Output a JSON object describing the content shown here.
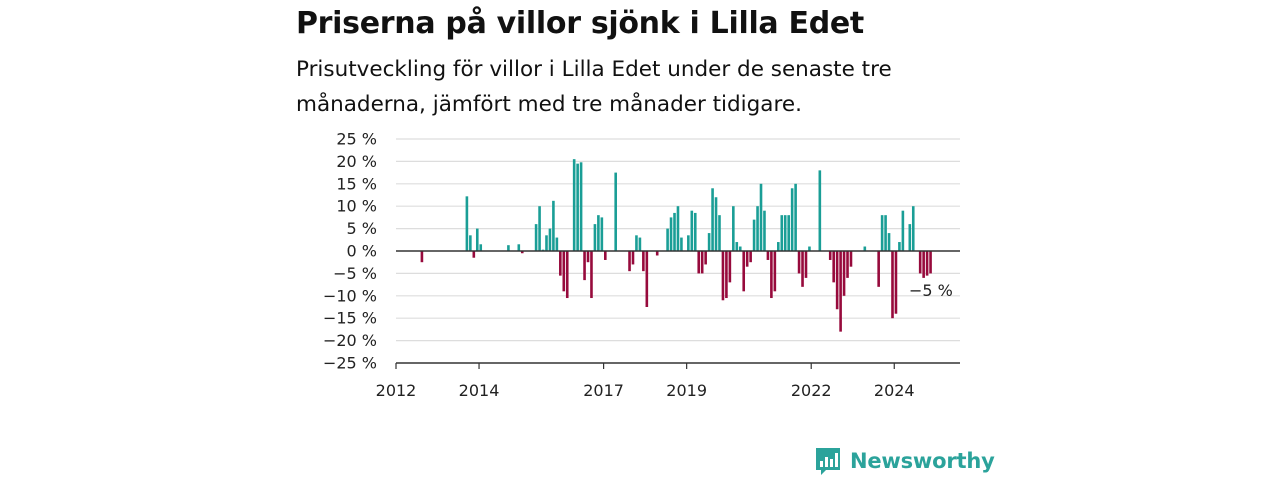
{
  "header": {
    "title": "Priserna på villor sjönk i Lilla Edet",
    "subtitle": "Prisutveckling för villor i Lilla Edet under de senaste tre månaderna, jämfört med tre månader tidigare."
  },
  "brand": {
    "name": "Newsworthy",
    "color": "#2ba39b"
  },
  "colors": {
    "positive": "#1a9e96",
    "negative": "#970a3c",
    "grid": "#dddddd",
    "axis": "#333333"
  },
  "chart_data": {
    "type": "bar",
    "unit": "%",
    "ylim": [
      -25,
      25
    ],
    "yticks": [
      {
        "value": 25,
        "label": "25 %"
      },
      {
        "value": 20,
        "label": "20 %"
      },
      {
        "value": 15,
        "label": "15 %"
      },
      {
        "value": 10,
        "label": "10 %"
      },
      {
        "value": 5,
        "label": "5 %"
      },
      {
        "value": 0,
        "label": "0 %"
      },
      {
        "value": -5,
        "label": "−5 %"
      },
      {
        "value": -10,
        "label": "−10 %"
      },
      {
        "value": -15,
        "label": "−15 %"
      },
      {
        "value": -20,
        "label": "−20 %"
      },
      {
        "value": -25,
        "label": "−25 %"
      }
    ],
    "xlim": [
      "2012-01",
      "2025-08"
    ],
    "xticks": [
      {
        "date": "2012-01",
        "label": "2012"
      },
      {
        "date": "2014-01",
        "label": "2014"
      },
      {
        "date": "2017-01",
        "label": "2017"
      },
      {
        "date": "2019-01",
        "label": "2019"
      },
      {
        "date": "2022-01",
        "label": "2022"
      },
      {
        "date": "2024-01",
        "label": "2024"
      }
    ],
    "grid": true,
    "end_label": "−5 %",
    "points": [
      {
        "date": "2012-08",
        "value": -2.5
      },
      {
        "date": "2013-09",
        "value": 12.2
      },
      {
        "date": "2013-10",
        "value": 3.5
      },
      {
        "date": "2013-11",
        "value": -1.5
      },
      {
        "date": "2013-12",
        "value": 5.0
      },
      {
        "date": "2014-01",
        "value": 1.5
      },
      {
        "date": "2014-09",
        "value": 1.3
      },
      {
        "date": "2014-12",
        "value": 1.5
      },
      {
        "date": "2015-01",
        "value": -0.5
      },
      {
        "date": "2015-05",
        "value": 6.0
      },
      {
        "date": "2015-06",
        "value": 10.0
      },
      {
        "date": "2015-07",
        "value": 0.3
      },
      {
        "date": "2015-08",
        "value": 3.5
      },
      {
        "date": "2015-09",
        "value": 5.0
      },
      {
        "date": "2015-10",
        "value": 11.2
      },
      {
        "date": "2015-11",
        "value": 3.0
      },
      {
        "date": "2015-12",
        "value": -5.5
      },
      {
        "date": "2016-01",
        "value": -9.0
      },
      {
        "date": "2016-02",
        "value": -10.5
      },
      {
        "date": "2016-04",
        "value": 20.5
      },
      {
        "date": "2016-05",
        "value": 19.5
      },
      {
        "date": "2016-06",
        "value": 19.8
      },
      {
        "date": "2016-07",
        "value": -6.5
      },
      {
        "date": "2016-08",
        "value": -2.5
      },
      {
        "date": "2016-09",
        "value": -10.5
      },
      {
        "date": "2016-10",
        "value": 6.0
      },
      {
        "date": "2016-11",
        "value": 8.0
      },
      {
        "date": "2016-12",
        "value": 7.5
      },
      {
        "date": "2017-01",
        "value": -2.0
      },
      {
        "date": "2017-04",
        "value": 17.5
      },
      {
        "date": "2017-08",
        "value": -4.5
      },
      {
        "date": "2017-09",
        "value": -3.0
      },
      {
        "date": "2017-10",
        "value": 3.5
      },
      {
        "date": "2017-11",
        "value": 3.0
      },
      {
        "date": "2017-12",
        "value": -4.5
      },
      {
        "date": "2018-01",
        "value": -12.5
      },
      {
        "date": "2018-04",
        "value": -1.0
      },
      {
        "date": "2018-07",
        "value": 5.0
      },
      {
        "date": "2018-08",
        "value": 7.5
      },
      {
        "date": "2018-09",
        "value": 8.5
      },
      {
        "date": "2018-10",
        "value": 10.0
      },
      {
        "date": "2018-11",
        "value": 3.0
      },
      {
        "date": "2019-01",
        "value": 3.5
      },
      {
        "date": "2019-02",
        "value": 9.0
      },
      {
        "date": "2019-03",
        "value": 8.5
      },
      {
        "date": "2019-04",
        "value": -5.0
      },
      {
        "date": "2019-05",
        "value": -5.0
      },
      {
        "date": "2019-06",
        "value": -3.0
      },
      {
        "date": "2019-07",
        "value": 4.0
      },
      {
        "date": "2019-08",
        "value": 14.0
      },
      {
        "date": "2019-09",
        "value": 12.0
      },
      {
        "date": "2019-10",
        "value": 8.0
      },
      {
        "date": "2019-11",
        "value": -11.0
      },
      {
        "date": "2019-12",
        "value": -10.5
      },
      {
        "date": "2020-01",
        "value": -7.0
      },
      {
        "date": "2020-02",
        "value": 10.0
      },
      {
        "date": "2020-03",
        "value": 2.0
      },
      {
        "date": "2020-04",
        "value": 1.0
      },
      {
        "date": "2020-05",
        "value": -9.0
      },
      {
        "date": "2020-06",
        "value": -3.5
      },
      {
        "date": "2020-07",
        "value": -2.5
      },
      {
        "date": "2020-08",
        "value": 7.0
      },
      {
        "date": "2020-09",
        "value": 10.0
      },
      {
        "date": "2020-10",
        "value": 15.0
      },
      {
        "date": "2020-11",
        "value": 9.0
      },
      {
        "date": "2020-12",
        "value": -2.0
      },
      {
        "date": "2021-01",
        "value": -10.5
      },
      {
        "date": "2021-02",
        "value": -9.0
      },
      {
        "date": "2021-03",
        "value": 2.0
      },
      {
        "date": "2021-04",
        "value": 8.0
      },
      {
        "date": "2021-05",
        "value": 8.0
      },
      {
        "date": "2021-06",
        "value": 8.0
      },
      {
        "date": "2021-07",
        "value": 14.0
      },
      {
        "date": "2021-08",
        "value": 15.0
      },
      {
        "date": "2021-09",
        "value": -5.0
      },
      {
        "date": "2021-10",
        "value": -8.0
      },
      {
        "date": "2021-11",
        "value": -6.0
      },
      {
        "date": "2021-12",
        "value": 1.0
      },
      {
        "date": "2022-03",
        "value": 18.0
      },
      {
        "date": "2022-06",
        "value": -2.0
      },
      {
        "date": "2022-07",
        "value": -7.0
      },
      {
        "date": "2022-08",
        "value": -13.0
      },
      {
        "date": "2022-09",
        "value": -18.0
      },
      {
        "date": "2022-10",
        "value": -10.0
      },
      {
        "date": "2022-11",
        "value": -6.0
      },
      {
        "date": "2022-12",
        "value": -3.5
      },
      {
        "date": "2023-04",
        "value": 1.0
      },
      {
        "date": "2023-08",
        "value": -8.0
      },
      {
        "date": "2023-09",
        "value": 8.0
      },
      {
        "date": "2023-10",
        "value": 8.0
      },
      {
        "date": "2023-11",
        "value": 4.0
      },
      {
        "date": "2023-12",
        "value": -15.0
      },
      {
        "date": "2024-01",
        "value": -14.0
      },
      {
        "date": "2024-02",
        "value": 2.0
      },
      {
        "date": "2024-03",
        "value": 9.0
      },
      {
        "date": "2024-05",
        "value": 6.0
      },
      {
        "date": "2024-06",
        "value": 10.0
      },
      {
        "date": "2024-08",
        "value": -5.0
      },
      {
        "date": "2024-09",
        "value": -6.0
      },
      {
        "date": "2024-10",
        "value": -5.5
      },
      {
        "date": "2024-11",
        "value": -5.0
      }
    ]
  }
}
